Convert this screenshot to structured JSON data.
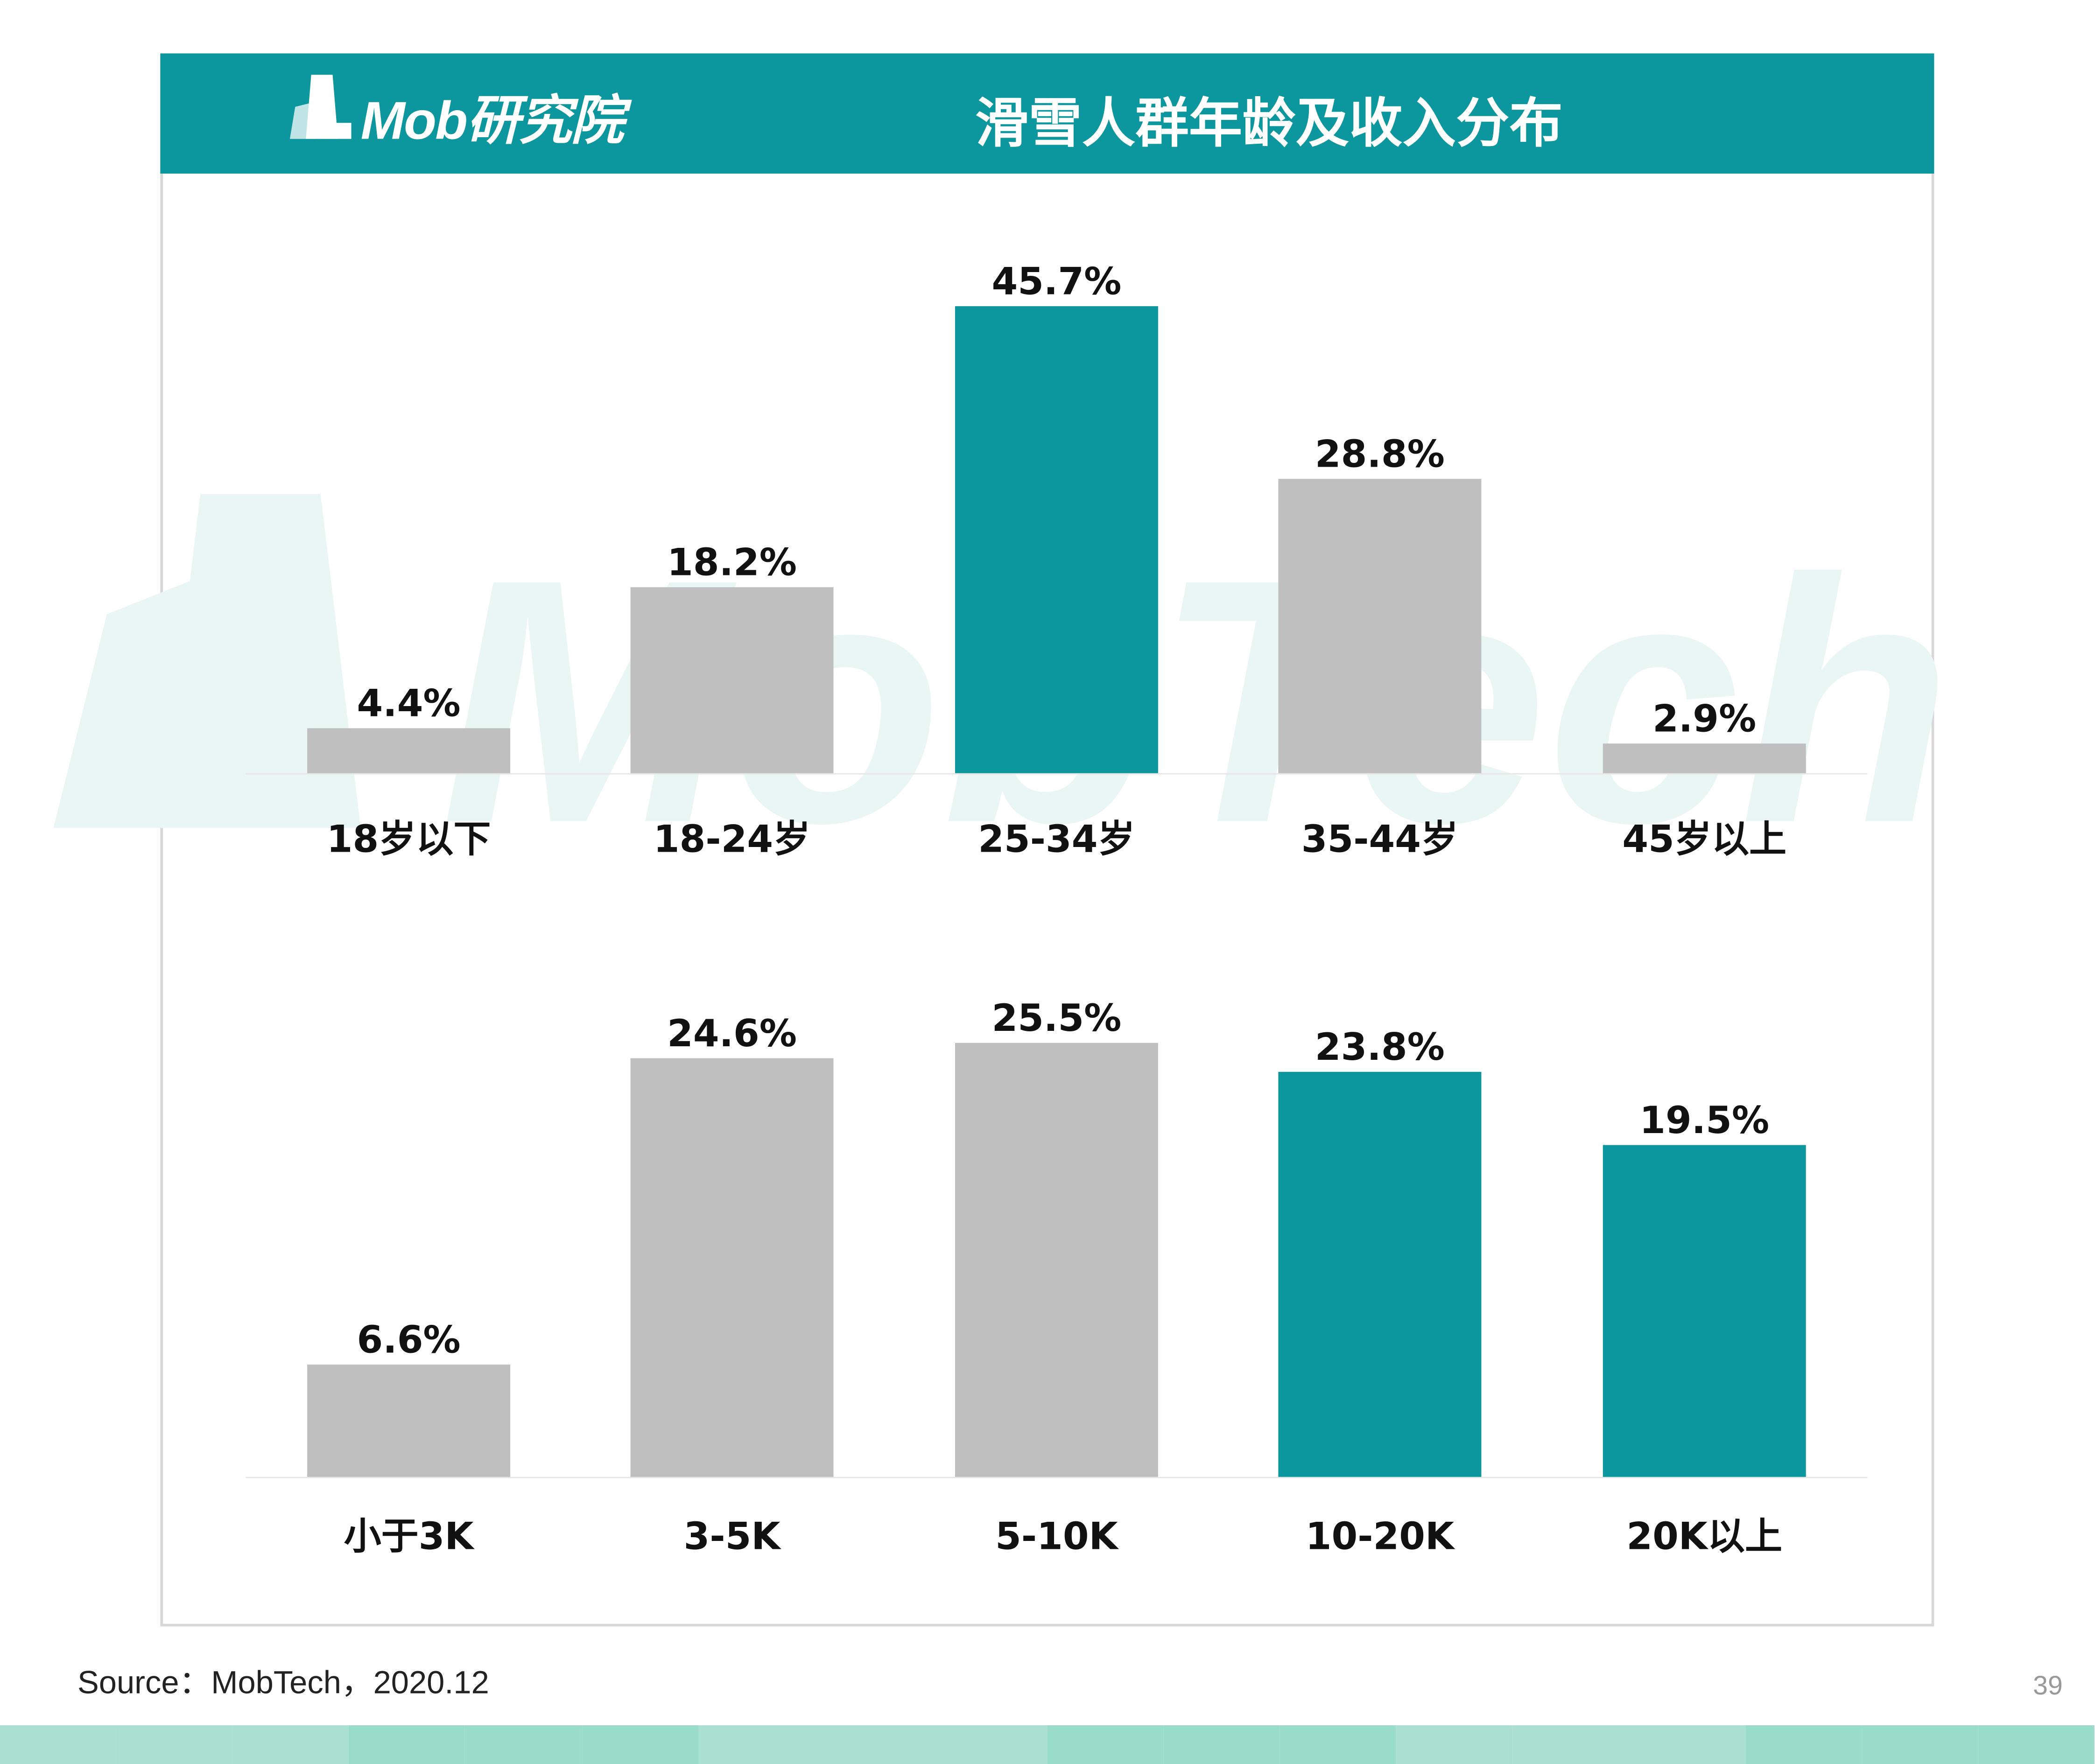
{
  "header": {
    "logo_text": "Mob研究院",
    "title": "滑雪人群年龄及收入分布"
  },
  "watermark": {
    "text": "MobTech 袤博"
  },
  "source": "Source：MobTech，2020.12",
  "page_number": "39",
  "colors": {
    "accent": "#0b979d",
    "gray_bar": "#bfbfbf",
    "footer": [
      "#a9e0d0",
      "#8fd8c4",
      "#b8e6da",
      "#9adcca",
      "#c4ebe0",
      "#86d4bf"
    ]
  },
  "chart_data": [
    {
      "type": "bar",
      "categories": [
        "18岁以下",
        "18-24岁",
        "25-34岁",
        "35-44岁",
        "45岁以上"
      ],
      "values": [
        4.4,
        18.2,
        45.7,
        28.8,
        2.9
      ],
      "value_labels": [
        "4.4%",
        "18.2%",
        "45.7%",
        "28.8%",
        "2.9%"
      ],
      "highlight": [
        false,
        false,
        true,
        false,
        false
      ],
      "ylim": [
        0,
        46
      ]
    },
    {
      "type": "bar",
      "categories": [
        "小于3K",
        "3-5K",
        "5-10K",
        "10-20K",
        "20K以上"
      ],
      "values": [
        6.6,
        24.6,
        25.5,
        23.8,
        19.5
      ],
      "value_labels": [
        "6.6%",
        "24.6%",
        "25.5%",
        "23.8%",
        "19.5%"
      ],
      "highlight": [
        false,
        false,
        false,
        true,
        true
      ],
      "ylim": [
        0,
        25.5
      ]
    }
  ]
}
